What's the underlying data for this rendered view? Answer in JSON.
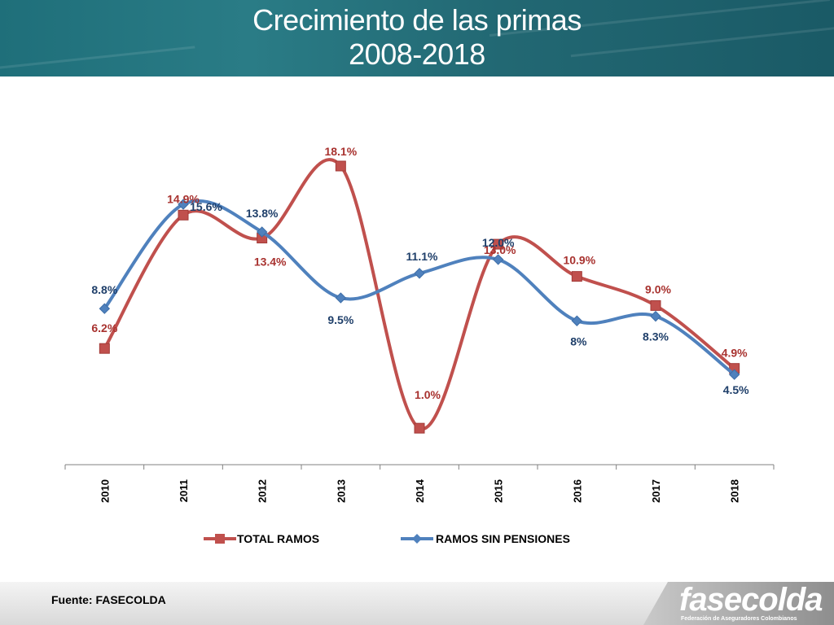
{
  "header": {
    "title_line1": "Crecimiento de las primas",
    "title_line2": "2008-2018"
  },
  "chart_data": {
    "type": "line",
    "categories": [
      "2010",
      "2011",
      "2012",
      "2013",
      "2014",
      "2015",
      "2016",
      "2017",
      "2018"
    ],
    "series": [
      {
        "name": "TOTAL RAMOS",
        "color": "#c0504d",
        "values": [
          6.2,
          14.9,
          13.4,
          18.1,
          1.0,
          13.0,
          10.9,
          9.0,
          4.9
        ],
        "labels": [
          "6.2%",
          "14.9%",
          "13.4%",
          "18.1%",
          "1.0%",
          "13.0%",
          "10.9%",
          "9.0%",
          "4.9%"
        ]
      },
      {
        "name": "RAMOS SIN PENSIONES",
        "color": "#4f81bd",
        "values": [
          8.8,
          15.6,
          13.8,
          9.5,
          11.1,
          12.0,
          8,
          8.3,
          4.5
        ],
        "labels": [
          "8.8%",
          "15.6%",
          "13.8%",
          "9.5%",
          "11.1%",
          "12.0%",
          "8%",
          "8.3%",
          "4.5%"
        ]
      }
    ],
    "ylim": [
      0,
      19.5
    ],
    "grid": false,
    "legend": "bottom",
    "smooth": true
  },
  "footer": {
    "source": "Fuente: FASECOLDA",
    "logo_text": "fasecolda",
    "logo_subtitle": "Federación de Aseguradores Colombianos"
  }
}
